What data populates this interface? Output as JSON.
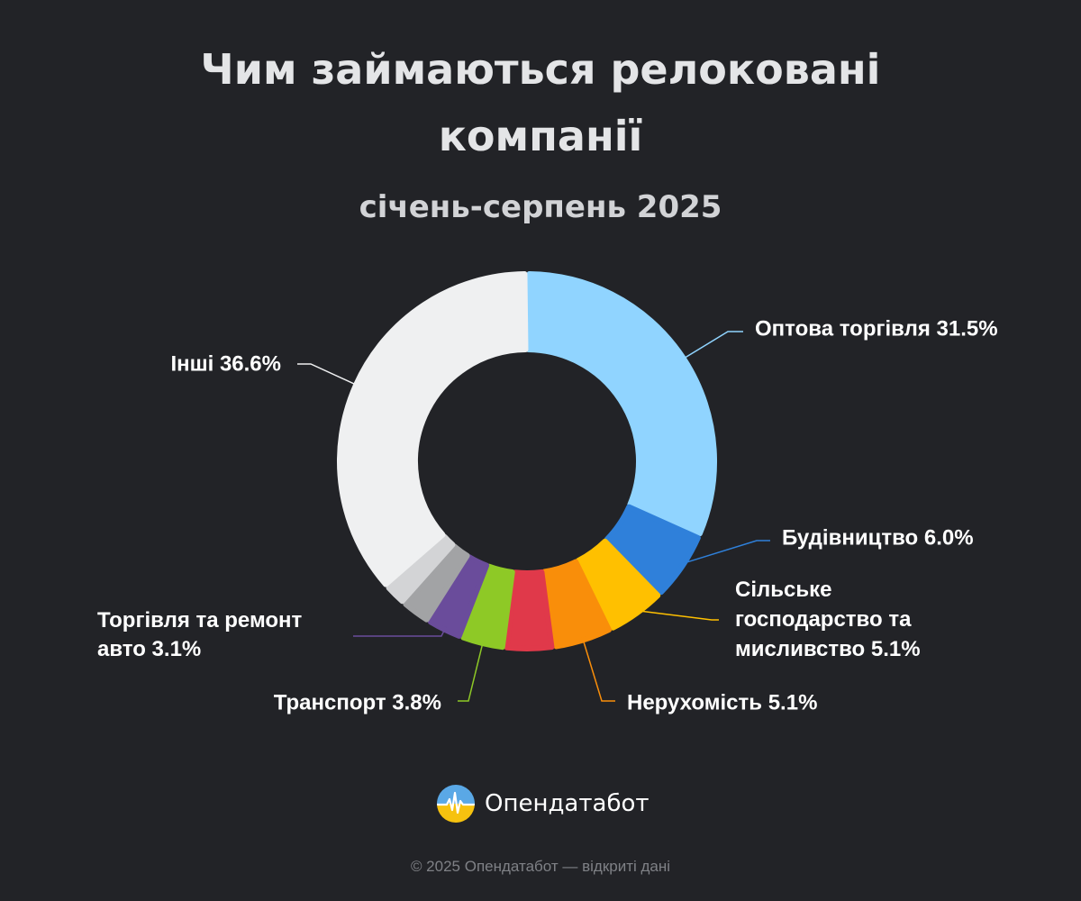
{
  "title": "Чим займаються релоковані компанії",
  "subtitle": "січень-серпень 2025",
  "chart_data": {
    "type": "pie",
    "donut": true,
    "title": "Чим займаються релоковані компанії",
    "subtitle": "січень-серпень 2025",
    "slices": [
      {
        "label": "Оптова торгівля",
        "value": 31.5,
        "color": "#90d4ff",
        "label_text": "Оптова торгівля 31.5%"
      },
      {
        "label": "Будівництво",
        "value": 6.0,
        "color": "#2f80da",
        "label_text": "Будівництво 6.0%"
      },
      {
        "label": "Сільське господарство та мисливство",
        "value": 5.1,
        "color": "#ffc000",
        "label_lines": [
          "Сільське",
          "господарство та",
          "мисливство 5.1%"
        ]
      },
      {
        "label": "Нерухомість",
        "value": 5.1,
        "color": "#f98e0a",
        "label_text": "Нерухомість 5.1%"
      },
      {
        "label": "",
        "value": 4.2,
        "color": "#e0394a"
      },
      {
        "label": "Транспорт",
        "value": 3.8,
        "color": "#8ec926",
        "label_text": "Транспорт 3.8%"
      },
      {
        "label": "Торгівля та ремонт авто",
        "value": 3.1,
        "color": "#6a4c9b",
        "label_lines": [
          "Торгівля та ремонт",
          "авто 3.1%"
        ]
      },
      {
        "label": "",
        "value": 2.6,
        "color": "#a2a3a5"
      },
      {
        "label": "",
        "value": 2.0,
        "color": "#d3d4d6"
      },
      {
        "label": "Інші",
        "value": 36.6,
        "color": "#eff0f1",
        "label_text": "Інші 36.6%"
      }
    ]
  },
  "branding": {
    "logo_name": "Опендатабот",
    "logo_icon": "pulse-circle-icon",
    "footer": "© 2025 Опендатабот — відкриті дані"
  }
}
